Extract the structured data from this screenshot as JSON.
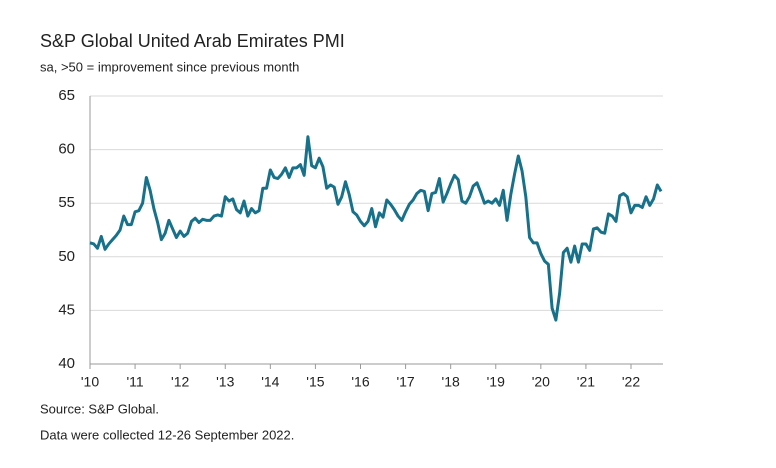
{
  "chart_data": {
    "type": "line",
    "title": "S&P Global United Arab Emirates PMI",
    "subtitle": "sa, >50 = improvement since previous month",
    "source": "Source: S&P Global.",
    "note": "Data were collected 12-26 September 2022.",
    "categories": [
      "'10",
      null,
      null,
      null,
      null,
      null,
      null,
      null,
      null,
      null,
      null,
      null,
      "'11",
      null,
      null,
      null,
      null,
      null,
      null,
      null,
      null,
      null,
      null,
      null,
      "'12",
      null,
      null,
      null,
      null,
      null,
      null,
      null,
      null,
      null,
      null,
      null,
      "'13",
      null,
      null,
      null,
      null,
      null,
      null,
      null,
      null,
      null,
      null,
      null,
      "'14",
      null,
      null,
      null,
      null,
      null,
      null,
      null,
      null,
      null,
      null,
      null,
      "'15",
      null,
      null,
      null,
      null,
      null,
      null,
      null,
      null,
      null,
      null,
      null,
      "'16",
      null,
      null,
      null,
      null,
      null,
      null,
      null,
      null,
      null,
      null,
      null,
      "'17",
      null,
      null,
      null,
      null,
      null,
      null,
      null,
      null,
      null,
      null,
      null,
      "'18",
      null,
      null,
      null,
      null,
      null,
      null,
      null,
      null,
      null,
      null,
      null,
      "'19",
      null,
      null,
      null,
      null,
      null,
      null,
      null,
      null,
      null,
      null,
      null,
      "'20",
      null,
      null,
      null,
      null,
      null,
      null,
      null,
      null,
      null,
      null,
      null,
      "'21",
      null,
      null,
      null,
      null,
      null,
      null,
      null,
      null,
      null,
      null,
      null,
      "'22",
      null,
      null,
      null,
      null,
      null,
      null,
      null,
      null
    ],
    "series": [
      {
        "name": "PMI",
        "color": "#17718a",
        "values": [
          51.3,
          51.2,
          50.8,
          51.9,
          50.7,
          51.2,
          51.6,
          52.0,
          52.5,
          53.8,
          53.0,
          53.0,
          54.2,
          54.3,
          55.0,
          57.4,
          56.2,
          54.5,
          53.2,
          51.6,
          52.2,
          53.4,
          52.6,
          51.8,
          52.4,
          51.9,
          52.2,
          53.3,
          53.6,
          53.2,
          53.5,
          53.4,
          53.4,
          53.8,
          53.9,
          53.8,
          55.6,
          55.2,
          55.4,
          54.4,
          54.1,
          55.2,
          53.8,
          54.5,
          54.1,
          54.3,
          56.4,
          56.4,
          58.1,
          57.4,
          57.3,
          57.7,
          58.3,
          57.4,
          58.3,
          58.3,
          58.6,
          57.6,
          61.2,
          58.5,
          58.3,
          59.2,
          58.4,
          56.4,
          56.7,
          56.5,
          54.9,
          55.6,
          57.0,
          55.8,
          54.2,
          53.9,
          53.3,
          52.9,
          53.3,
          54.5,
          52.8,
          54.1,
          53.7,
          55.3,
          54.9,
          54.4,
          53.8,
          53.4,
          54.2,
          54.9,
          55.3,
          55.9,
          56.2,
          56.1,
          54.3,
          55.9,
          56.0,
          57.3,
          55.1,
          55.9,
          56.8,
          57.6,
          57.2,
          55.2,
          55.0,
          55.6,
          56.6,
          56.9,
          56.0,
          55.0,
          55.2,
          55.0,
          55.4,
          54.8,
          56.2,
          53.4,
          55.8,
          57.7,
          59.4,
          58.0,
          55.6,
          51.8,
          51.3,
          51.3,
          50.3,
          49.6,
          49.3,
          45.2,
          44.1,
          46.6,
          50.4,
          50.8,
          49.5,
          51.0,
          49.5,
          51.2,
          51.2,
          50.6,
          52.6,
          52.7,
          52.3,
          52.2,
          54.0,
          53.8,
          53.3,
          55.7,
          55.9,
          55.6,
          54.1,
          54.8,
          54.8,
          54.6,
          55.6,
          54.8,
          55.4,
          56.7,
          56.1
        ]
      }
    ],
    "ylim": [
      40,
      65
    ],
    "yticks": [
      40,
      45,
      50,
      55,
      60,
      65
    ],
    "grid": true
  }
}
